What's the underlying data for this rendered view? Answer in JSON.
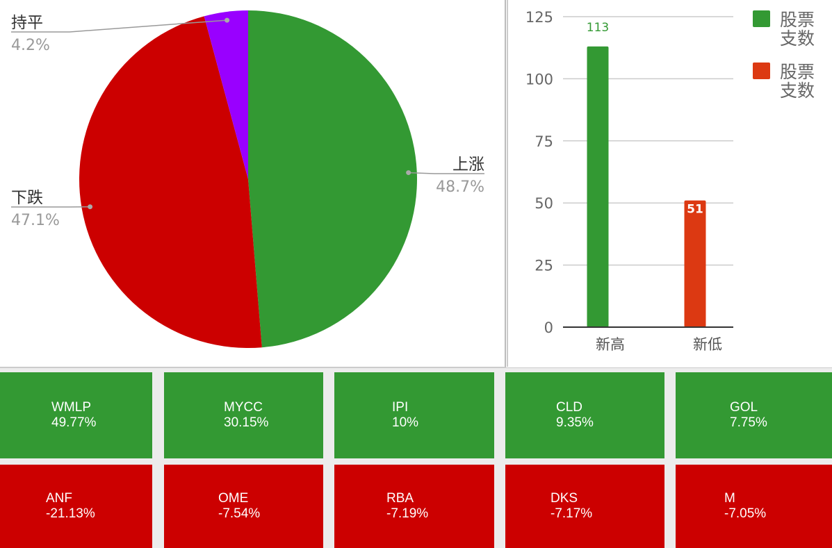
{
  "chart_data": [
    {
      "type": "pie",
      "slices": [
        {
          "label": "上涨",
          "value": 48.7,
          "pct_label": "48.7%",
          "color": "#339933"
        },
        {
          "label": "下跌",
          "value": 47.1,
          "pct_label": "47.1%",
          "color": "#cc0000"
        },
        {
          "label": "持平",
          "value": 4.2,
          "pct_label": "4.2%",
          "color": "#9900ff"
        }
      ]
    },
    {
      "type": "bar",
      "categories": [
        "新高",
        "新低"
      ],
      "series": [
        {
          "name": "股票支数",
          "values": [
            113,
            null
          ],
          "color": "#339933"
        },
        {
          "name": "股票支数",
          "values": [
            null,
            51
          ],
          "color": "#dc3912"
        }
      ],
      "data_labels": [
        "113",
        "51"
      ],
      "ylim": [
        0,
        125
      ],
      "yticks": [
        0,
        25,
        50,
        75,
        100,
        125
      ],
      "grid": true,
      "legend": "right",
      "legend_entries": [
        "股票\n支数",
        "股票\n支数"
      ]
    }
  ],
  "tiles": {
    "gainers": [
      {
        "symbol": "WMLP",
        "change": "49.77%"
      },
      {
        "symbol": "MYCC",
        "change": "30.15%"
      },
      {
        "symbol": "IPI",
        "change": "10%"
      },
      {
        "symbol": "CLD",
        "change": "9.35%"
      },
      {
        "symbol": "GOL",
        "change": "7.75%"
      }
    ],
    "losers": [
      {
        "symbol": "ANF",
        "change": "-21.13%"
      },
      {
        "symbol": "OME",
        "change": "-7.54%"
      },
      {
        "symbol": "RBA",
        "change": "-7.19%"
      },
      {
        "symbol": "DKS",
        "change": "-7.17%"
      },
      {
        "symbol": "M",
        "change": "-7.05%"
      }
    ],
    "gain_color": "#339933",
    "loss_color": "#cc0000"
  }
}
